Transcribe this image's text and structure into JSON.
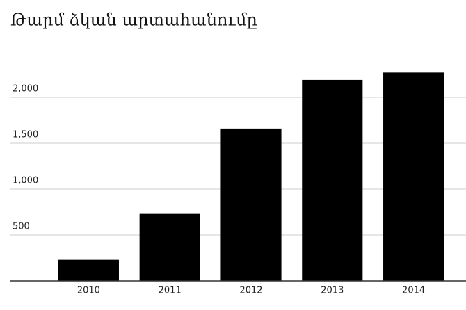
{
  "chart_data": {
    "type": "bar",
    "title": "Թարմ ձկան արտահանումը",
    "categories": [
      "2010",
      "2011",
      "2012",
      "2013",
      "2014"
    ],
    "values": [
      230,
      730,
      1660,
      2190,
      2270
    ],
    "color": "#000000",
    "ylim": [
      0,
      2500
    ],
    "yticks": [
      500,
      {
        "value": 1000,
        "label": "1,000"
      },
      {
        "value": 1500,
        "label": "1,500"
      },
      {
        "value": 2000,
        "label": "2,000"
      }
    ],
    "grid": true
  }
}
